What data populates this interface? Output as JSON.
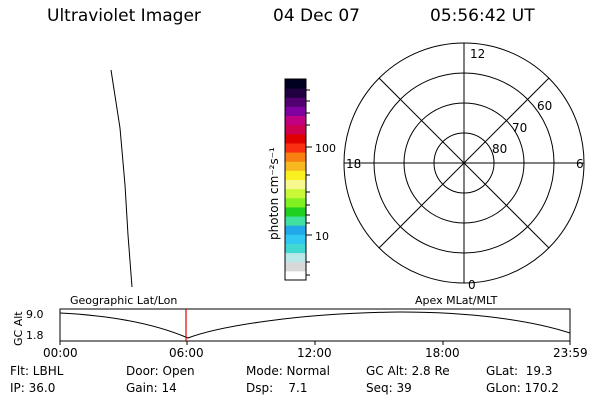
{
  "header": {
    "title": "Ultraviolet Imager",
    "date": "04 Dec 07",
    "time": "05:56:42 UT"
  },
  "colorbar": {
    "ylabel": "photon cm⁻²s⁻¹",
    "ticks": [
      "100",
      "10"
    ],
    "colors": [
      "#ffffff",
      "#d8d8d8",
      "#b8e8e8",
      "#40d8d0",
      "#30c8f0",
      "#20a8e8",
      "#40e0a0",
      "#20d020",
      "#80f020",
      "#c8f838",
      "#f8f890",
      "#f8f020",
      "#f8b820",
      "#f88010",
      "#f83010",
      "#e00000",
      "#d00050",
      "#c00080",
      "#8000a0",
      "#500070",
      "#200040",
      "#000020"
    ]
  },
  "polar": {
    "labels": {
      "top": "12",
      "bottom": "0",
      "left": "18",
      "right": "6"
    },
    "lat_labels": [
      "60",
      "70",
      "80"
    ]
  },
  "timeline": {
    "ylabel": "GC Alt",
    "y_ticks": [
      "9.0",
      "1.8"
    ],
    "x_ticks": [
      "00:00",
      "06:00",
      "12:00",
      "18:00",
      "23:59"
    ],
    "marker_time": "05:56",
    "left_label": "Geographic Lat/Lon",
    "right_label": "Apex MLat/MLT"
  },
  "info": {
    "flt": "Flt: LBHL",
    "ip": "IP: 36.0",
    "door": "Door: Open",
    "gain": "Gain: 14",
    "mode": "Mode: Normal",
    "dsp": "Dsp:    7.1",
    "gcalt": "GC Alt: 2.8 Re",
    "seq": "Seq: 39",
    "glat": "GLat:  19.3",
    "glon": "GLon: 170.2"
  }
}
